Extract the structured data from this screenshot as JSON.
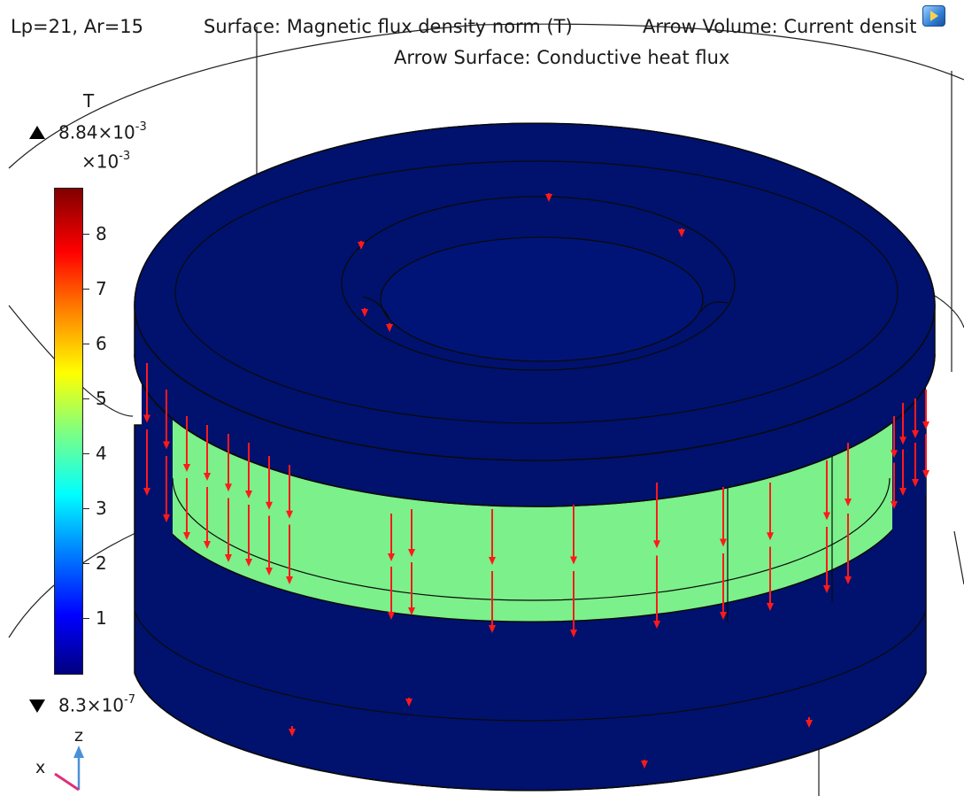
{
  "plot": {
    "params": "Lp=21, Ar=15",
    "surface_title": "Surface: Magnetic flux density norm (T)",
    "arrow_volume_title": "Arrow Volume: Current densit",
    "arrow_surface_title": "Arrow Surface: Conductive heat flux"
  },
  "colorbar": {
    "unit": "T",
    "max_mantissa": "8.84×10",
    "max_exponent": "-3",
    "multiplier_base": "×10",
    "multiplier_exponent": "-3",
    "ticks": [
      "8",
      "7",
      "6",
      "5",
      "4",
      "3",
      "2",
      "1"
    ],
    "min_mantissa": "8.3×10",
    "min_exponent": "-7",
    "colors": [
      "#00007f",
      "#0000ff",
      "#0080ff",
      "#00ffff",
      "#80ff80",
      "#ffff00",
      "#ff8000",
      "#ff0000",
      "#800000"
    ]
  },
  "axes": {
    "z": "z",
    "x": "x"
  },
  "colors": {
    "body": "#00126e",
    "band": "#7cf08a",
    "arrow": "#ff1a1a"
  },
  "icons": {
    "corner": "rotate-view-icon"
  }
}
